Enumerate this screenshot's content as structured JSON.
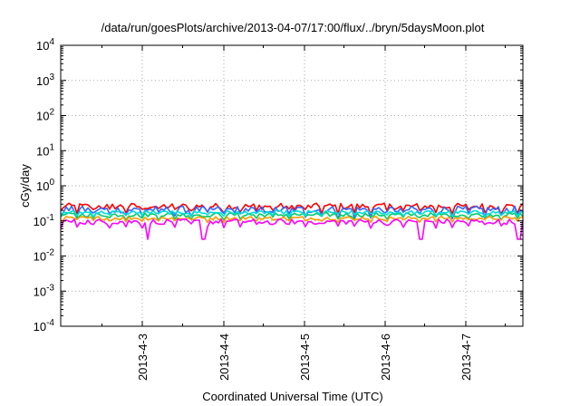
{
  "chart_data": {
    "type": "line",
    "title": "/data/run/goesPlots/archive/2013-04-07/17:00/flux/../bryn/5daysMoon.plot",
    "xlabel": "Coordinated Universal Time (UTC)",
    "ylabel": "cGy/day",
    "y_scale": "log",
    "ylim_exponents": [
      -4,
      4
    ],
    "y_tick_base": "10",
    "y_tick_exponents": [
      "-4",
      "-3",
      "-2",
      "-1",
      "0",
      "1",
      "2",
      "3",
      "4"
    ],
    "x_ticks": [
      "2013-4-3",
      "2013-4-4",
      "2013-4-5",
      "2013-4-6",
      "2013-4-7"
    ],
    "grid": true,
    "series": [
      {
        "color": "#ff0000",
        "level": 0.26,
        "spread": 0.18,
        "dips": false
      },
      {
        "color": "#3366ff",
        "level": 0.21,
        "spread": 0.2,
        "dips": false
      },
      {
        "color": "#00cc66",
        "level": 0.15,
        "spread": 0.12,
        "dips": false
      },
      {
        "color": "#00dddd",
        "level": 0.175,
        "spread": 0.1,
        "dips": false
      },
      {
        "color": "#ff9900",
        "level": 0.12,
        "spread": 0.1,
        "dips": false
      },
      {
        "color": "#ff00ff",
        "level": 0.095,
        "spread": 0.15,
        "dips": true
      }
    ]
  }
}
